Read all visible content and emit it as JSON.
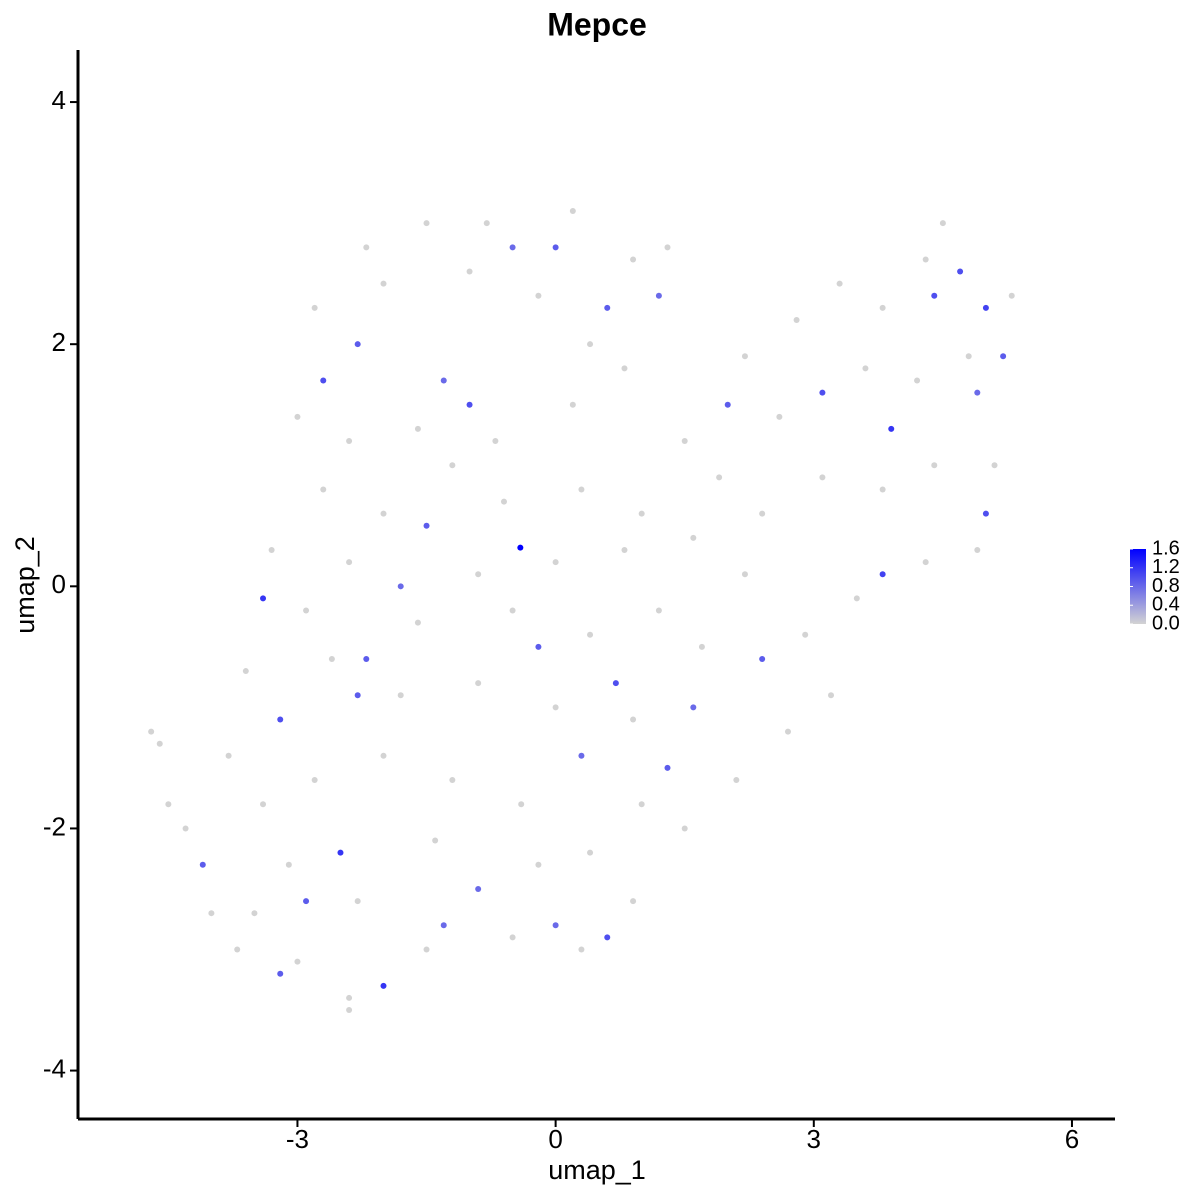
{
  "chart_data": {
    "type": "scatter",
    "title": "Mepce",
    "xlabel": "umap_1",
    "ylabel": "umap_2",
    "xlim": [
      -5.55,
      6.5
    ],
    "ylim": [
      -4.4,
      4.43
    ],
    "xticks": [
      -3,
      0,
      3,
      6
    ],
    "yticks": [
      -4,
      -2,
      0,
      2,
      4
    ],
    "grid": false,
    "low_color": "#d3d3d3",
    "high_color": "#0000ff",
    "clim": [
      0,
      1.6
    ],
    "cticks": [
      {
        "value": 0,
        "label": "0.0"
      },
      0.4,
      0.8,
      1.2,
      1.6
    ],
    "x": [
      -2.2,
      -1.5,
      -0.8,
      0.2,
      0.9,
      1.3,
      -2.8,
      -2.0,
      -1.0,
      -0.2,
      0.4,
      -3.0,
      -2.4,
      -1.6,
      -0.7,
      0.2,
      0.8,
      1.5,
      2.2,
      2.8,
      3.3,
      3.8,
      4.3,
      4.5,
      5.3,
      4.8,
      4.2,
      3.6,
      2.6,
      1.9,
      1.0,
      0.3,
      -0.6,
      -1.2,
      -2.0,
      -2.7,
      -3.3,
      -2.9,
      -2.4,
      -1.6,
      -0.9,
      0.0,
      0.8,
      1.6,
      2.4,
      3.1,
      3.8,
      4.4,
      5.1,
      4.9,
      4.3,
      3.5,
      2.9,
      3.2,
      2.7,
      2.1,
      1.5,
      0.9,
      0.3,
      -0.5,
      -1.5,
      -2.4,
      -3.0,
      -3.5,
      -4.0,
      -4.3,
      -4.6,
      -4.7,
      -3.8,
      -3.4,
      -2.8,
      -2.0,
      -1.2,
      -0.4,
      0.4,
      1.0,
      -3.6,
      -2.6,
      -1.8,
      -0.9,
      0.0,
      0.9,
      1.7,
      2.2,
      1.2,
      0.4,
      -0.5,
      -1.4,
      -2.3,
      -3.1,
      -0.2,
      -4.5,
      -3.7,
      -2.4,
      -3.4,
      -2.7,
      -2.3,
      -1.3,
      -1.0,
      0.6,
      -2.5,
      -2.0,
      -3.2,
      4.7,
      5.0,
      5.2,
      3.9,
      2.0,
      0.7,
      -0.2,
      1.3,
      0.6,
      -4.1,
      -2.2,
      -1.5,
      4.4,
      3.8,
      3.1,
      -1.8,
      -0.5,
      0.0,
      1.2,
      -3.2,
      -2.3,
      0.0,
      -1.3,
      2.4,
      1.6,
      -2.9,
      4.9,
      5.0,
      0.3,
      -0.9,
      -0.41
    ],
    "y": [
      2.8,
      3.0,
      3.0,
      3.1,
      2.7,
      2.8,
      2.3,
      2.5,
      2.6,
      2.4,
      2.0,
      1.4,
      1.2,
      1.3,
      1.2,
      1.5,
      1.8,
      1.2,
      1.9,
      2.2,
      2.5,
      2.3,
      2.7,
      3.0,
      2.4,
      1.9,
      1.7,
      1.8,
      1.4,
      0.9,
      0.6,
      0.8,
      0.7,
      1.0,
      0.6,
      0.8,
      0.3,
      -0.2,
      0.2,
      -0.3,
      0.1,
      0.2,
      0.3,
      0.4,
      0.6,
      0.9,
      0.8,
      1.0,
      1.0,
      0.3,
      0.2,
      -0.1,
      -0.4,
      -0.9,
      -1.2,
      -1.6,
      -2.0,
      -2.6,
      -3.0,
      -2.9,
      -3.0,
      -3.4,
      -3.1,
      -2.7,
      -2.7,
      -2.0,
      -1.3,
      -1.2,
      -1.4,
      -1.8,
      -1.6,
      -1.4,
      -1.6,
      -1.8,
      -2.2,
      -1.8,
      -0.7,
      -0.6,
      -0.9,
      -0.8,
      -1.0,
      -1.1,
      -0.5,
      0.1,
      -0.2,
      -0.4,
      -0.2,
      -2.1,
      -2.6,
      -2.3,
      -2.3,
      -1.8,
      -3.0,
      -3.5,
      -0.1,
      1.7,
      2.0,
      1.7,
      1.5,
      2.3,
      -2.2,
      -3.3,
      -3.2,
      2.6,
      2.3,
      1.9,
      1.3,
      1.5,
      -0.8,
      -0.5,
      -1.5,
      -2.9,
      -2.3,
      -0.6,
      0.5,
      2.4,
      0.1,
      1.6,
      0.0,
      2.8,
      2.8,
      2.4,
      -1.1,
      -0.9,
      -2.8,
      -2.8,
      -0.6,
      -1.0,
      -2.6,
      1.6,
      0.6,
      -1.4,
      -2.5,
      0.32
    ],
    "values": [
      0,
      0,
      0,
      0,
      0,
      0,
      0,
      0,
      0,
      0,
      0,
      0,
      0,
      0,
      0,
      0,
      0,
      0,
      0,
      0,
      0,
      0,
      0,
      0,
      0,
      0,
      0,
      0,
      0,
      0,
      0,
      0,
      0,
      0,
      0,
      0,
      0,
      0,
      0,
      0,
      0,
      0,
      0,
      0,
      0,
      0,
      0,
      0,
      0,
      0,
      0,
      0,
      0,
      0,
      0,
      0,
      0,
      0,
      0,
      0,
      0,
      0,
      0,
      0,
      0,
      0,
      0,
      0,
      0,
      0,
      0,
      0,
      0,
      0,
      0,
      0,
      0,
      0,
      0,
      0,
      0,
      0,
      0,
      0,
      0,
      0,
      0,
      0,
      0,
      0,
      0,
      0,
      0,
      0,
      1.2,
      1.0,
      0.9,
      0.8,
      1.0,
      0.9,
      1.2,
      1.2,
      0.9,
      1.0,
      1.1,
      0.9,
      1.2,
      0.9,
      1.0,
      0.9,
      0.9,
      1.0,
      0.9,
      0.9,
      0.9,
      1.0,
      1.1,
      1.0,
      0.8,
      0.8,
      0.9,
      0.8,
      1.0,
      0.9,
      0.8,
      0.8,
      0.9,
      0.8,
      0.9,
      0.8,
      1.0,
      0.8,
      0.8,
      1.6
    ]
  }
}
